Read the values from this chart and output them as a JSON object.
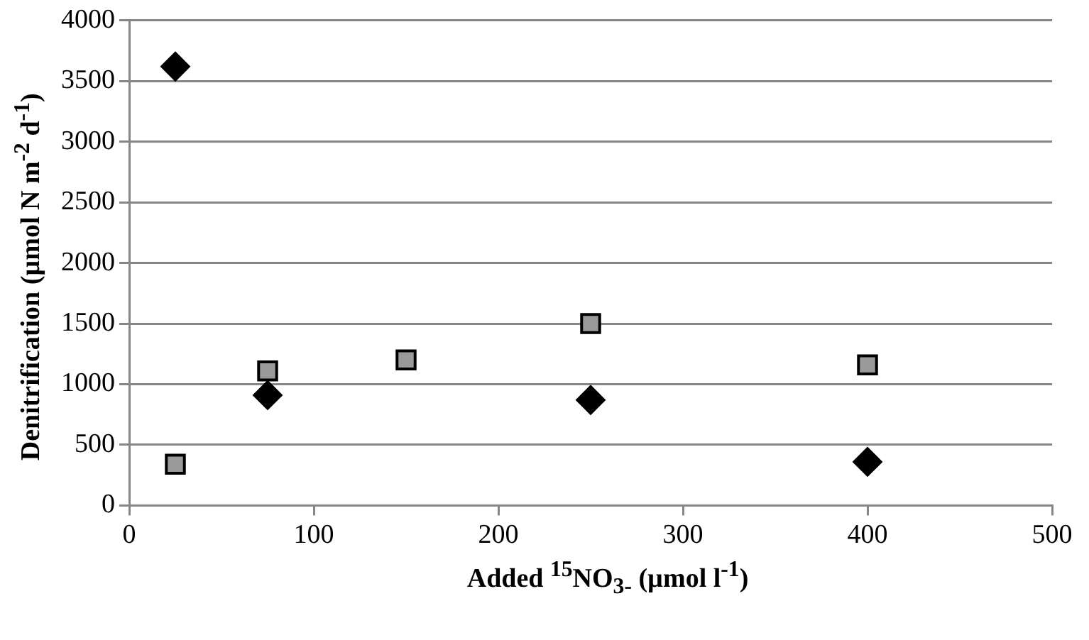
{
  "chart_data": {
    "type": "scatter",
    "xlabel": "Added $^{15}$NO$_{3-}$ (µmol l$^{-1}$)",
    "ylabel": "Denitrification (µmol N m$^{-2}$ d$^{-1}$)",
    "series": [
      {
        "color": "#000000",
        "marker": "diamond",
        "x": [
          25,
          75,
          250,
          400
        ],
        "values": [
          3620,
          910,
          870,
          360
        ]
      },
      {
        "color": "#9a9a9a",
        "marker": "square",
        "x": [
          25,
          75,
          150,
          250,
          400
        ],
        "values": [
          340,
          1110,
          1200,
          1500,
          1160
        ]
      }
    ],
    "xlim": [
      0,
      500
    ],
    "xticks": [
      0,
      100,
      200,
      300,
      400,
      500
    ],
    "ylim": [
      0,
      4000
    ],
    "yticks": [
      0,
      500,
      1000,
      1500,
      2000,
      2500,
      3000,
      3500,
      4000
    ],
    "grid": "y",
    "legend": false
  }
}
